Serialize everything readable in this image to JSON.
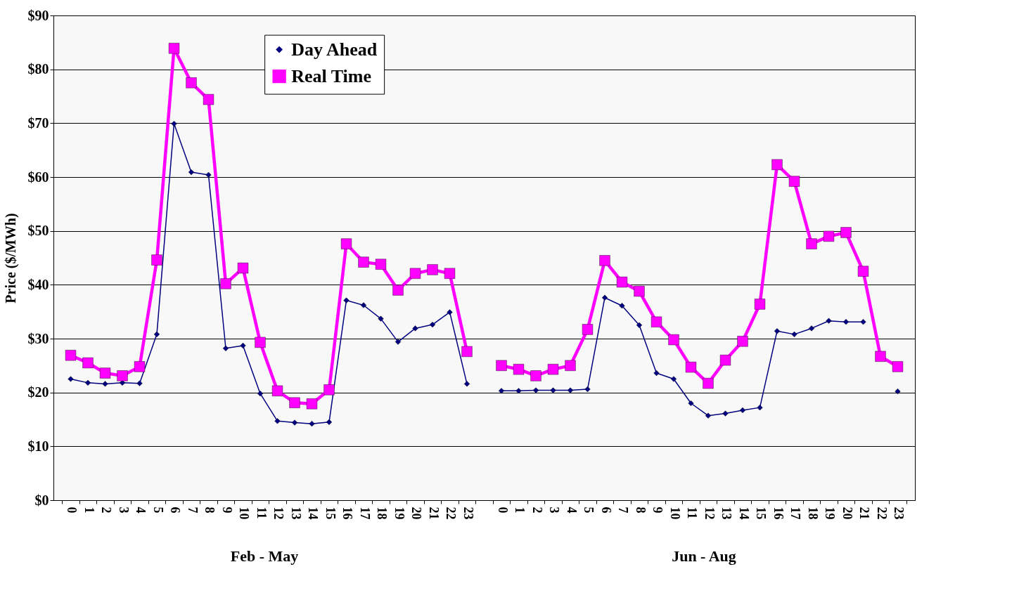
{
  "chart_data": {
    "type": "line",
    "ylabel": "Price ($/MWh)",
    "categories": [
      "0",
      "1",
      "2",
      "3",
      "4",
      "5",
      "6",
      "7",
      "8",
      "9",
      "10",
      "11",
      "12",
      "13",
      "14",
      "15",
      "16",
      "17",
      "18",
      "19",
      "20",
      "21",
      "22",
      "23",
      null,
      "0",
      "1",
      "2",
      "3",
      "4",
      "5",
      "6",
      "7",
      "8",
      "9",
      "10",
      "11",
      "12",
      "13",
      "14",
      "15",
      "16",
      "17",
      "18",
      "19",
      "20",
      "21",
      "22",
      "23"
    ],
    "series": [
      {
        "name": "Day Ahead",
        "color": "#000080",
        "marker": "diamond",
        "values": [
          22.5,
          21.8,
          21.6,
          21.8,
          21.7,
          30.8,
          69.9,
          60.9,
          60.4,
          28.2,
          28.7,
          19.8,
          14.7,
          14.4,
          14.2,
          14.5,
          37.1,
          36.2,
          33.7,
          29.4,
          31.9,
          32.6,
          34.9,
          21.6,
          null,
          20.3,
          20.3,
          20.4,
          20.4,
          20.4,
          20.6,
          37.6,
          36.1,
          32.5,
          23.6,
          22.5,
          18.0,
          15.7,
          16.1,
          16.7,
          17.2,
          31.4,
          30.8,
          31.9,
          33.3,
          33.1,
          33.1,
          null,
          20.2
        ]
      },
      {
        "name": "Real Time",
        "color": "#ff00ff",
        "marker": "square",
        "values": [
          26.9,
          25.5,
          23.6,
          23.1,
          24.8,
          44.6,
          83.9,
          77.5,
          74.4,
          40.2,
          43.1,
          29.3,
          20.3,
          18.1,
          17.9,
          20.5,
          47.6,
          44.2,
          43.8,
          39.0,
          42.1,
          42.8,
          42.1,
          27.6,
          null,
          25.0,
          24.3,
          23.1,
          24.3,
          25.0,
          31.7,
          44.5,
          40.5,
          38.8,
          33.1,
          29.8,
          24.7,
          21.7,
          26.0,
          29.5,
          36.4,
          62.3,
          59.2,
          47.6,
          49.0,
          49.7,
          42.5,
          26.7,
          24.8
        ]
      }
    ],
    "ylim": [
      0,
      90
    ],
    "yticks": [
      {
        "value": 0,
        "label": "$0"
      },
      {
        "value": 10,
        "label": "$10"
      },
      {
        "value": 20,
        "label": "$20"
      },
      {
        "value": 30,
        "label": "$30"
      },
      {
        "value": 40,
        "label": "$40"
      },
      {
        "value": 50,
        "label": "$50"
      },
      {
        "value": 60,
        "label": "$60"
      },
      {
        "value": 70,
        "label": "$70"
      },
      {
        "value": 80,
        "label": "$80"
      },
      {
        "value": 90,
        "label": "$90"
      }
    ],
    "grid": "y",
    "legend": "top",
    "annotations": [
      "Feb - May",
      "Jun - Aug"
    ]
  }
}
